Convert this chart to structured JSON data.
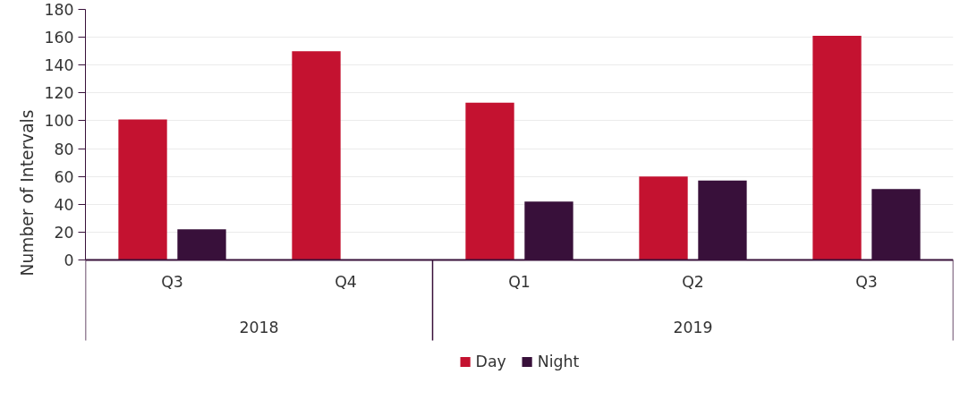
{
  "chart_data": {
    "type": "bar",
    "ylabel": "Number of Intervals",
    "categories": [
      "Q3",
      "Q4",
      "Q1",
      "Q2",
      "Q3"
    ],
    "annotations": [
      "2018",
      "2019"
    ],
    "series": [
      {
        "name": "Day",
        "color": "#c41230",
        "values": [
          101,
          150,
          113,
          60,
          161
        ]
      },
      {
        "name": "Night",
        "color": "#38103a",
        "values": [
          22,
          null,
          42,
          57,
          51
        ]
      }
    ],
    "ylim": [
      0,
      180
    ],
    "yticks": [
      0,
      20,
      40,
      60,
      80,
      100,
      120,
      140,
      160,
      180
    ],
    "grid": "y",
    "legend": "bottom"
  }
}
